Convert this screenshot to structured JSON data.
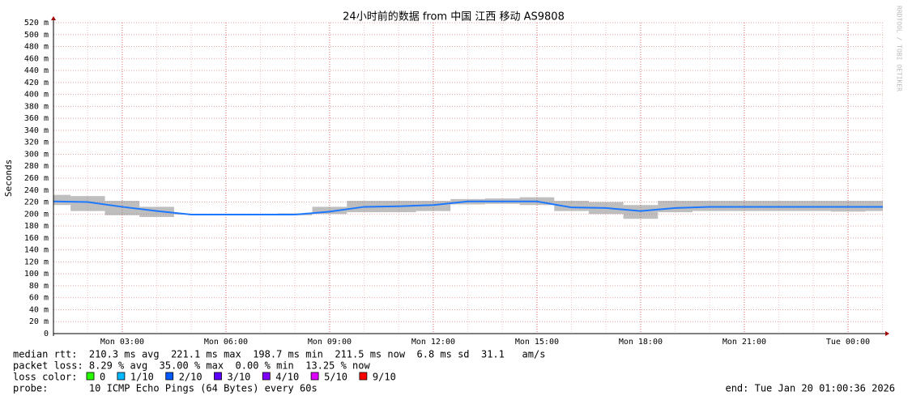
{
  "chart_data": {
    "type": "line",
    "title": "24小时前的数据 from  中国 江西 移动 AS9808",
    "ylabel": "Seconds",
    "side_text": "RRDTOOL / TOBI OETIKER",
    "x": [
      1.01,
      2,
      3,
      4,
      5,
      6,
      7,
      8,
      9,
      10,
      11,
      12,
      13,
      14,
      15,
      16,
      17,
      18,
      19,
      20,
      21,
      22,
      23,
      24,
      25.01
    ],
    "series": [
      {
        "name": "median rtt",
        "color": "#1e78ff",
        "values": [
          221,
          220,
          212,
          205,
          199,
          199,
          199,
          199,
          204,
          212,
          213,
          215,
          221,
          221,
          221,
          211,
          210,
          205,
          210,
          212,
          212,
          212,
          212,
          212,
          212
        ]
      }
    ],
    "smoke": {
      "color": "#888888",
      "low": [
        215,
        205,
        198,
        195,
        199,
        199,
        199,
        198,
        200,
        203,
        203,
        205,
        216,
        217,
        215,
        205,
        200,
        192,
        203,
        205,
        205,
        205,
        205,
        204,
        205
      ],
      "high": [
        232,
        230,
        222,
        212,
        200,
        200,
        200,
        201,
        212,
        222,
        222,
        222,
        225,
        226,
        228,
        222,
        220,
        215,
        222,
        222,
        222,
        222,
        222,
        222,
        222
      ]
    },
    "xlim": [
      1.01,
      25.01
    ],
    "xticks": [
      {
        "value": 3,
        "label": "Mon 03:00"
      },
      {
        "value": 6,
        "label": "Mon 06:00"
      },
      {
        "value": 9,
        "label": "Mon 09:00"
      },
      {
        "value": 12,
        "label": "Mon 12:00"
      },
      {
        "value": 15,
        "label": "Mon 15:00"
      },
      {
        "value": 18,
        "label": "Mon 18:00"
      },
      {
        "value": 21,
        "label": "Mon 21:00"
      },
      {
        "value": 24,
        "label": "Tue 00:00"
      }
    ],
    "ylim": [
      0,
      520
    ],
    "yticks": [
      0,
      {
        "value": 20,
        "label": "20 m"
      },
      {
        "value": 40,
        "label": "40 m"
      },
      {
        "value": 60,
        "label": "60 m"
      },
      {
        "value": 80,
        "label": "80 m"
      },
      {
        "value": 100,
        "label": "100 m"
      },
      {
        "value": 120,
        "label": "120 m"
      },
      {
        "value": 140,
        "label": "140 m"
      },
      {
        "value": 160,
        "label": "160 m"
      },
      {
        "value": 180,
        "label": "180 m"
      },
      {
        "value": 200,
        "label": "200 m"
      },
      {
        "value": 220,
        "label": "220 m"
      },
      {
        "value": 240,
        "label": "240 m"
      },
      {
        "value": 260,
        "label": "260 m"
      },
      {
        "value": 280,
        "label": "280 m"
      },
      {
        "value": 300,
        "label": "300 m"
      },
      {
        "value": 320,
        "label": "320 m"
      },
      {
        "value": 340,
        "label": "340 m"
      },
      {
        "value": 360,
        "label": "360 m"
      },
      {
        "value": 380,
        "label": "380 m"
      },
      {
        "value": 400,
        "label": "400 m"
      },
      {
        "value": 420,
        "label": "420 m"
      },
      {
        "value": 440,
        "label": "440 m"
      },
      {
        "value": 460,
        "label": "460 m"
      },
      {
        "value": 480,
        "label": "480 m"
      },
      {
        "value": 500,
        "label": "500 m"
      },
      {
        "value": 520,
        "label": "520 m"
      }
    ],
    "grid": true,
    "stats": {
      "median": "median rtt:  210.3 ms avg  221.1 ms max  198.7 ms min  211.5 ms now  6.8 ms sd  31.1   am/s",
      "loss": "packet loss: 8.29 % avg  35.00 % max  0.00 % min  13.25 % now",
      "loss_color_label": "loss color:",
      "loss_colors": [
        {
          "name": "0",
          "color": "#26ff00"
        },
        {
          "name": "1/10",
          "color": "#00b8ff"
        },
        {
          "name": "2/10",
          "color": "#0059ff"
        },
        {
          "name": "3/10",
          "color": "#5e00ff"
        },
        {
          "name": "4/10",
          "color": "#7e00ff"
        },
        {
          "name": "5/10",
          "color": "#dd00ff"
        },
        {
          "name": "9/10",
          "color": "#ff0000"
        }
      ],
      "probe": "probe:       10 ICMP Echo Pings (64 Bytes) every 60s",
      "end": "end: Tue Jan 20 01:00:36 2026"
    }
  }
}
